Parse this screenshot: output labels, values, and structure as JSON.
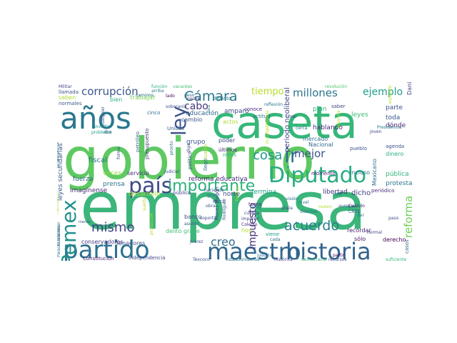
{
  "words": [
    {
      "text": "empresa",
      "color": "#3bb57a"
    },
    {
      "text": "gobierno",
      "color": "#5ec962"
    },
    {
      "text": "caseta",
      "color": "#35b779"
    },
    {
      "text": "años",
      "color": "#2a788e"
    },
    {
      "text": "partido",
      "color": "#2c728e"
    },
    {
      "text": "maestro",
      "color": "#31688e"
    },
    {
      "text": "historia",
      "color": "#33638d"
    },
    {
      "text": "país",
      "color": "#3e4a89"
    },
    {
      "text": "importante",
      "color": "#2db27d"
    },
    {
      "text": "Diputado",
      "color": "#27ad81"
    },
    {
      "text": "Pemex",
      "color": "#21918c"
    },
    {
      "text": "ley",
      "color": "#3b528b"
    },
    {
      "text": "corrupción",
      "color": "#39568c"
    },
    {
      "text": "Cámara",
      "color": "#2a768e"
    },
    {
      "text": "millones",
      "color": "#2b748e"
    },
    {
      "text": "tiempo",
      "color": "#b5de2b"
    },
    {
      "text": "ejemplo",
      "color": "#1f9e89"
    },
    {
      "text": "ir",
      "color": "#2e6e8e"
    },
    {
      "text": "cosa",
      "color": "#1f988b"
    },
    {
      "text": "mejor",
      "color": "#3b528b"
    },
    {
      "text": "acuerdo",
      "color": "#287d8e"
    },
    {
      "text": "reforma",
      "color": "#6ece58"
    },
    {
      "text": "mismo",
      "color": "#433e85"
    },
    {
      "text": "creo",
      "color": "#2e6f8e"
    },
    {
      "text": "impuesto",
      "color": "#46327e"
    },
    {
      "text": "cabo",
      "color": "#453781"
    },
    {
      "text": "educación",
      "color": "#33638d"
    },
    {
      "text": "reforma educativa",
      "color": "#482677"
    },
    {
      "text": "periodo neoliberal",
      "color": "#3f4889"
    },
    {
      "text": "leyes secundarias",
      "color": "#365c8d"
    },
    {
      "text": "fiscal",
      "color": "#2d708e"
    },
    {
      "text": "prensa",
      "color": "#2c718e"
    },
    {
      "text": "veces",
      "color": "#8fd744"
    },
    {
      "text": "servicio",
      "color": "#472d7b"
    },
    {
      "text": "fuerza",
      "color": "#31688e"
    },
    {
      "text": "imagínense",
      "color": "#472c7a"
    },
    {
      "text": "desarrollo",
      "color": "#a5db36"
    },
    {
      "text": "público",
      "color": "#404688"
    },
    {
      "text": "norte",
      "color": "#3e4989"
    },
    {
      "text": "termina",
      "color": "#1e9b8a"
    },
    {
      "text": "libertad",
      "color": "#46307e"
    },
    {
      "text": "dicho",
      "color": "#433e85"
    },
    {
      "text": "protesta",
      "color": "#2a788e"
    },
    {
      "text": "pública",
      "color": "#2db27d"
    },
    {
      "text": "leyes",
      "color": "#3dbc74"
    },
    {
      "text": "toda",
      "color": "#38598c"
    },
    {
      "text": "parte",
      "color": "#3a548c"
    },
    {
      "text": "dónde",
      "color": "#482475"
    },
    {
      "text": "plan",
      "color": "#31b57b"
    },
    {
      "text": "amparo",
      "color": "#3e4c8a"
    },
    {
      "text": "grupo",
      "color": "#3b528b"
    },
    {
      "text": "poder",
      "color": "#3f4788"
    },
    {
      "text": "actos",
      "color": "#addc30"
    },
    {
      "text": "trabajar",
      "color": "#7ad151"
    },
    {
      "text": "saben",
      "color": "#b0dd2f"
    },
    {
      "text": "normales",
      "color": "#365d8d"
    },
    {
      "text": "bien",
      "color": "#2fb47c"
    },
    {
      "text": "cambio",
      "color": "#3a548c"
    },
    {
      "text": "noche",
      "color": "#481f70"
    },
    {
      "text": "cinco",
      "color": "#2d708e"
    },
    {
      "text": "conoce",
      "color": "#472a7a"
    },
    {
      "text": "distinto",
      "color": "#27808e"
    },
    {
      "text": "función",
      "color": "#29af7f"
    },
    {
      "text": "vacantes",
      "color": "#3dbc74"
    },
    {
      "text": "hablando",
      "color": "#482878"
    },
    {
      "text": "saber",
      "color": "#3e4989"
    },
    {
      "text": "mercado",
      "color": "#2c728e"
    },
    {
      "text": "Nacional",
      "color": "#2f6c8e"
    },
    {
      "text": "incluso",
      "color": "#2d708e"
    },
    {
      "text": "momento",
      "color": "#482475"
    },
    {
      "text": "pueblo",
      "color": "#3b528b"
    },
    {
      "text": "dinero",
      "color": "#2ab07f"
    },
    {
      "text": "agenda",
      "color": "#3b528b"
    },
    {
      "text": "Mexicano",
      "color": "#2d708e"
    },
    {
      "text": "Presidencia",
      "color": "#2a788e"
    },
    {
      "text": "joven",
      "color": "#433d84"
    },
    {
      "text": "banco",
      "color": "#3f4889"
    },
    {
      "text": "delito grave",
      "color": "#42be71"
    },
    {
      "text": "senadores",
      "color": "#3b528b"
    },
    {
      "text": "conservadores",
      "color": "#443983"
    },
    {
      "text": "Constitución",
      "color": "#481a6c"
    },
    {
      "text": "independencia",
      "color": "#414487"
    },
    {
      "text": "Texcoco",
      "color": "#3b528b"
    },
    {
      "text": "hoy",
      "color": "#b8de29"
    },
    {
      "text": "recordar",
      "color": "#482173"
    },
    {
      "text": "sólo",
      "color": "#481467"
    },
    {
      "text": "derecho",
      "color": "#440154"
    },
    {
      "text": "Colegio",
      "color": "#472f7d"
    },
    {
      "text": "justicia",
      "color": "#2e6f8e"
    },
    {
      "text": "histórica",
      "color": "#404588"
    },
    {
      "text": "democracia",
      "color": "#2db27d"
    },
    {
      "text": "recursos",
      "color": "#3b528b"
    },
    {
      "text": "suficiente",
      "color": "#35b779"
    },
    {
      "text": "estadounidense",
      "color": "#2b758e"
    },
    {
      "text": "Juárez",
      "color": "#3b528b"
    },
    {
      "text": "periódico",
      "color": "#472c7a"
    },
    {
      "text": "presupuesto",
      "color": "#453581"
    },
    {
      "text": "petróleo",
      "color": "#355f8d"
    },
    {
      "text": "Militar",
      "color": "#3f4788"
    },
    {
      "text": "llamada",
      "color": "#3b528b"
    },
    {
      "text": "arriba",
      "color": "#2a788e"
    },
    {
      "text": "lado",
      "color": "#440154"
    },
    {
      "text": "iba",
      "color": "#3a538b"
    },
    {
      "text": "menos",
      "color": "#3b528b"
    },
    {
      "text": "partir",
      "color": "#440154"
    },
    {
      "text": "cada",
      "color": "#2d708e"
    },
    {
      "text": "normal",
      "color": "#3e4a89"
    },
    {
      "text": "ética",
      "color": "#3b528b"
    },
    {
      "text": "niños",
      "color": "#2db27d"
    },
    {
      "text": "imponer",
      "color": "#3f4889"
    },
    {
      "text": "tema",
      "color": "#2c728e"
    },
    {
      "text": "toma",
      "color": "#482878"
    },
    {
      "text": "cuenta",
      "color": "#3f4889"
    },
    {
      "text": "plaza",
      "color": "#3f4889"
    },
    {
      "text": "nuevo",
      "color": "#addc30"
    },
    {
      "text": "CNTE",
      "color": "#3b528b"
    },
    {
      "text": "dar",
      "color": "#2d708e"
    },
    {
      "text": "actitud",
      "color": "#2d708e"
    },
    {
      "text": "mal",
      "color": "#3e4a89"
    },
    {
      "text": "reflexión",
      "color": "#2a788e"
    },
    {
      "text": "revolución",
      "color": "#4ac16d"
    },
    {
      "text": "soberanía",
      "color": "#3b528b"
    },
    {
      "text": "Unidos",
      "color": "#365c8d"
    },
    {
      "text": "últimos",
      "color": "#482475"
    },
    {
      "text": "Flores Magón",
      "color": "#3f4889"
    },
    {
      "text": "Rodríguez",
      "color": "#3b528b"
    },
    {
      "text": "Daniel Cabrera",
      "color": "#404588"
    },
    {
      "text": "aunque",
      "color": "#3b528b"
    },
    {
      "text": "Cuándo",
      "color": "#482878"
    },
    {
      "text": "casos",
      "color": "#31688e"
    },
    {
      "text": "haciendo",
      "color": "#3b528b"
    },
    {
      "text": "obra",
      "color": "#3b528b"
    },
    {
      "text": "visión",
      "color": "#31688e"
    },
    {
      "text": "peso",
      "color": "#2d708e"
    },
    {
      "text": "llegó",
      "color": "#2d708e"
    },
    {
      "text": "sala",
      "color": "#2a788e"
    },
    {
      "text": "digo",
      "color": "#3e4a89"
    },
    {
      "text": "cualquier",
      "color": "#3b528b"
    },
    {
      "text": "sueño",
      "color": "#a5db36"
    },
    {
      "text": "gran",
      "color": "#2d708e"
    },
    {
      "text": "invertir",
      "color": "#21918c"
    },
    {
      "text": "problema",
      "color": "#1f9e89"
    },
    {
      "text": "hechos",
      "color": "#addc30"
    },
    {
      "text": "viene",
      "color": "#1e9b8a"
    },
    {
      "text": "Asamblea",
      "color": "#2d708e"
    },
    {
      "text": "pronto",
      "color": "#2d708e"
    },
    {
      "text": "político",
      "color": "#3b528b"
    },
    {
      "text": "asunto",
      "color": "#3b528b"
    },
    {
      "text": "cerca",
      "color": "#2d708e"
    },
    {
      "text": "mayoría",
      "color": "#addc30"
    },
    {
      "text": "directos",
      "color": "#2d708e"
    },
    {
      "text": "cuál",
      "color": "#2d708e"
    },
    {
      "text": "judicial",
      "color": "#3b528b"
    },
    {
      "text": "forma",
      "color": "#3b528b"
    },
    {
      "text": "protección",
      "color": "#b5de2b"
    },
    {
      "text": "incumplimiento",
      "color": "#b5de2b"
    },
    {
      "text": "Palacio Nacional",
      "color": "#2d708e"
    },
    {
      "text": "Patrimonio",
      "color": "#a5db36"
    },
    {
      "text": "propaganda",
      "color": "#2d708e"
    },
    {
      "text": "suerte",
      "color": "#addc30"
    },
    {
      "text": "equivale",
      "color": "#b5de2b"
    },
    {
      "text": "nivel",
      "color": "#2d708e"
    },
    {
      "text": "caminos",
      "color": "#2d708e"
    },
    {
      "text": "soportar",
      "color": "#3b528b"
    },
    {
      "text": "paso",
      "color": "#3b528b"
    }
  ]
}
